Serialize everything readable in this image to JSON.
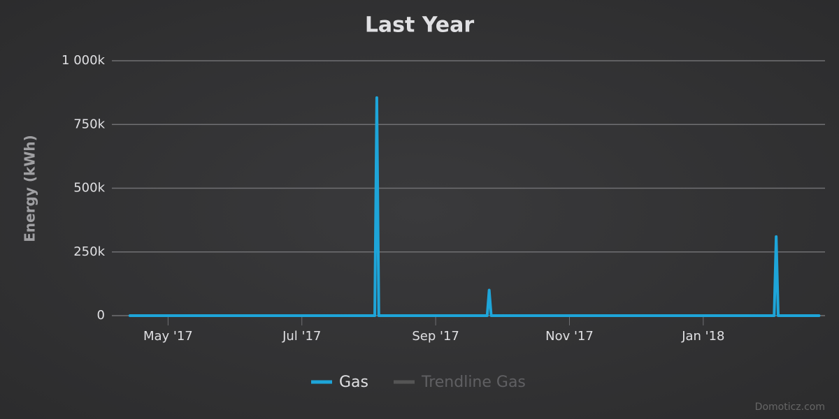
{
  "chart_data": {
    "type": "line",
    "title": "Last Year",
    "y_label": "Energy (kWh)",
    "credits": "Domoticz.com",
    "x": [
      4.43,
      8.09,
      8.12,
      8.15,
      9.77,
      9.8,
      9.83,
      14.06,
      14.09,
      14.12,
      14.73
    ],
    "series": [
      {
        "name": "Gas",
        "color": "#1ea5d9",
        "visible": true,
        "values": [
          0,
          0,
          855000,
          0,
          0,
          100000,
          0,
          0,
          310000,
          0,
          0
        ]
      },
      {
        "name": "Trendline Gas",
        "color": "#666666",
        "visible": false,
        "values": [
          null,
          null,
          null,
          null,
          null,
          null,
          null,
          null,
          null,
          null,
          null
        ]
      }
    ],
    "xlim": [
      4.16,
      14.82
    ],
    "xticks": [
      {
        "value": 5,
        "label": "May '17"
      },
      {
        "value": 7,
        "label": "Jul '17"
      },
      {
        "value": 9,
        "label": "Sep '17"
      },
      {
        "value": 11,
        "label": "Nov '17"
      },
      {
        "value": 13,
        "label": "Jan '18"
      }
    ],
    "ylim": [
      0,
      1000000
    ],
    "yticks": [
      {
        "value": 0,
        "label": "0"
      },
      {
        "value": 250000,
        "label": "250k"
      },
      {
        "value": 500000,
        "label": "500k"
      },
      {
        "value": 750000,
        "label": "750k"
      },
      {
        "value": 1000000,
        "label": "1 000k"
      }
    ],
    "grid": true
  }
}
